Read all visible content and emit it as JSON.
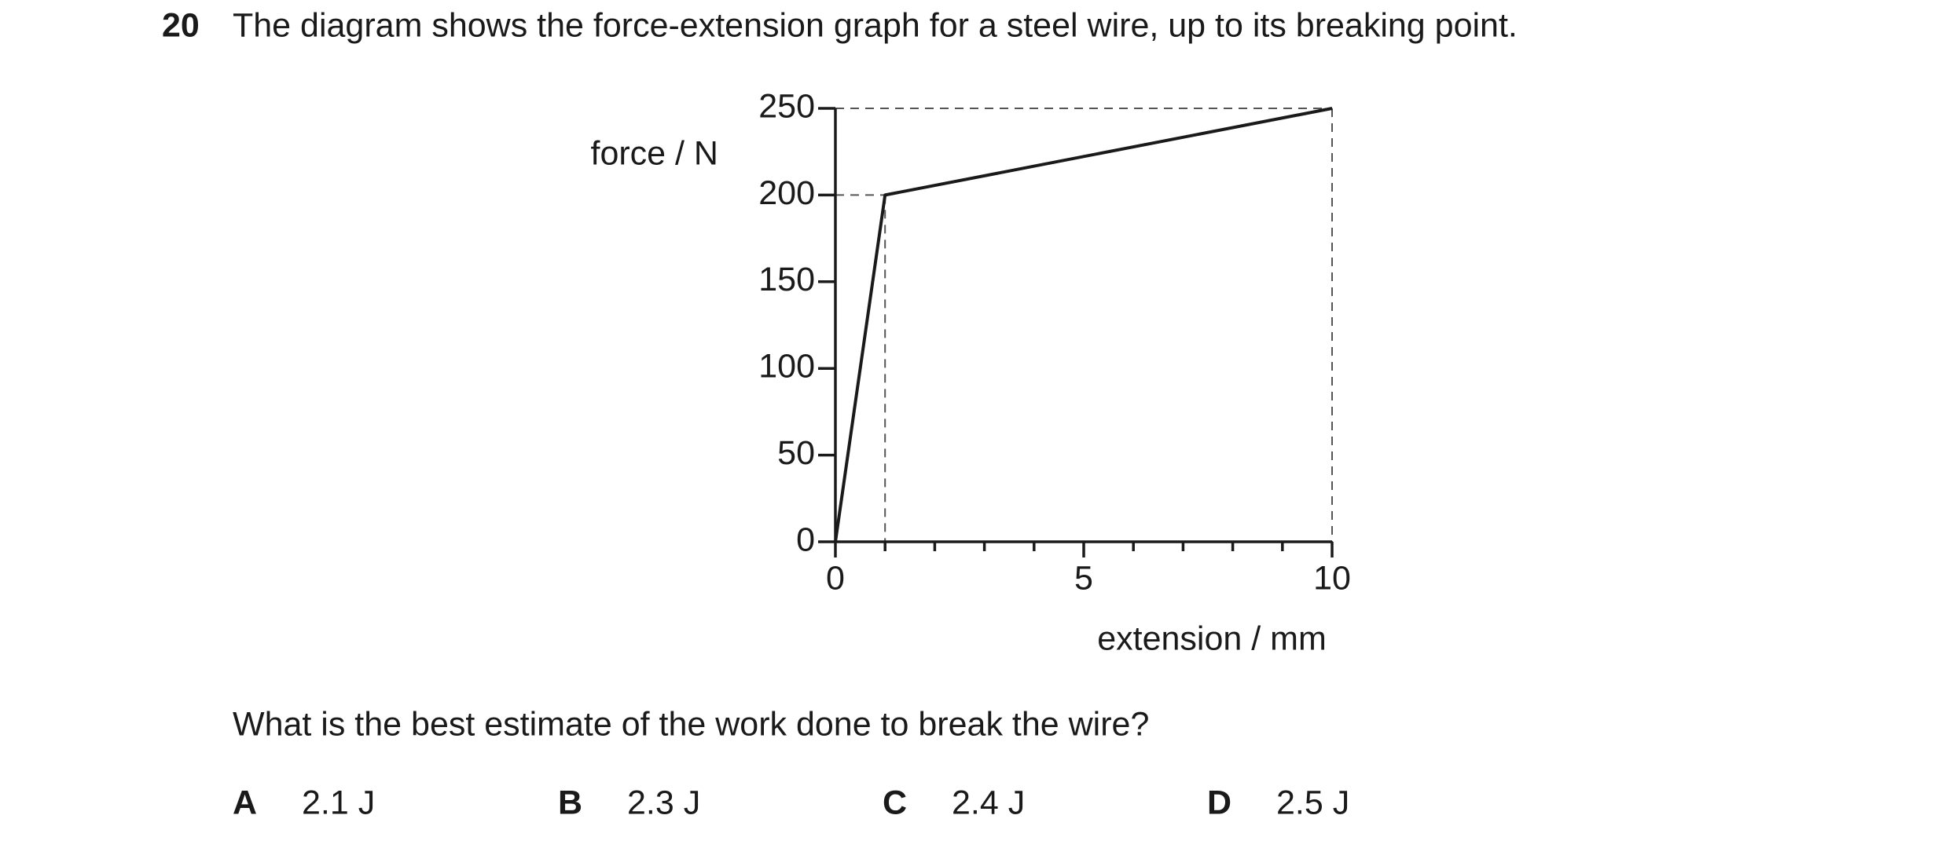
{
  "question": {
    "number": "20",
    "text": "The diagram shows the force-extension graph for a steel wire, up to its breaking point."
  },
  "chart_data": {
    "type": "line",
    "x_label": "extension / mm",
    "y_label": "force / N",
    "x": [
      0,
      1,
      10
    ],
    "series": [
      {
        "color": "#1a1a1a",
        "values": [
          0,
          200,
          250
        ]
      }
    ],
    "xlim": [
      0,
      10
    ],
    "ylim": [
      0,
      250
    ],
    "xticks": [
      0,
      5,
      10
    ],
    "xminorticks": [
      1,
      2,
      3,
      4,
      6,
      7,
      8,
      9
    ],
    "yticks": [
      0,
      50,
      100,
      150,
      200,
      250
    ],
    "drop_lines": true
  },
  "prompt": "What is the best estimate of the work done to break the wire?",
  "options": [
    {
      "letter": "A",
      "text": "2.1 J"
    },
    {
      "letter": "B",
      "text": "2.3 J"
    },
    {
      "letter": "C",
      "text": "2.4 J"
    },
    {
      "letter": "D",
      "text": "2.5 J"
    }
  ]
}
